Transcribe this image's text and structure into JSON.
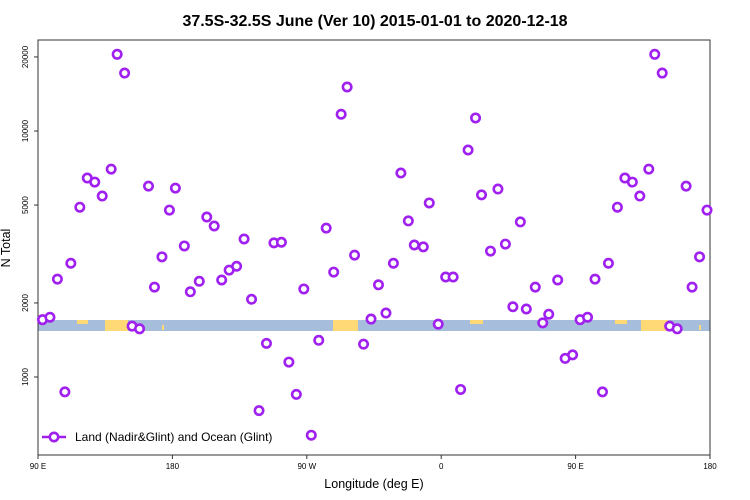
{
  "chart_data": {
    "type": "scatter",
    "title": "37.5S-32.5S June (Ver 10)   2015-01-01 to 2020-12-18",
    "xlabel": "Longitude (deg E)",
    "ylabel": "N Total",
    "y_scale": "log",
    "ylim": [
      450,
      24000
    ],
    "xlim": [
      90,
      540
    ],
    "x_unit_note": "continuous degrees east, 90E through 180 and around to 180 again",
    "x_ticks": [
      {
        "value": 90,
        "label": "90 E"
      },
      {
        "value": 180,
        "label": "180"
      },
      {
        "value": 270,
        "label": "90 W"
      },
      {
        "value": 360,
        "label": "0"
      },
      {
        "value": 450,
        "label": "90 E"
      },
      {
        "value": 540,
        "label": "180"
      }
    ],
    "y_ticks": [
      {
        "value": 1000,
        "label": "1000"
      },
      {
        "value": 2000,
        "label": "2000"
      },
      {
        "value": 5000,
        "label": "5000"
      },
      {
        "value": 10000,
        "label": "10000"
      },
      {
        "value": 20000,
        "label": "20000"
      }
    ],
    "legend": {
      "position": "bottom-left",
      "entries": [
        {
          "label": "Land (Nadir&Glint) and Ocean (Glint)",
          "color": "#A020F0",
          "marker": "open-circle"
        }
      ]
    },
    "band_colors": {
      "ocean": "#A6BDDB",
      "land": "#FED976"
    },
    "series": [
      {
        "name": "Land (Nadir&Glint) and Ocean (Glint)",
        "color": "#A020F0",
        "points": [
          [
            93,
            1710
          ],
          [
            98,
            1750
          ],
          [
            103,
            2500
          ],
          [
            108,
            870
          ],
          [
            112,
            2900
          ],
          [
            118,
            4900
          ],
          [
            123,
            6440
          ],
          [
            128,
            6200
          ],
          [
            133,
            5440
          ],
          [
            139,
            7000
          ],
          [
            143,
            20500
          ],
          [
            148,
            17200
          ],
          [
            153,
            1610
          ],
          [
            158,
            1570
          ],
          [
            164,
            5970
          ],
          [
            168,
            2320
          ],
          [
            173,
            3080
          ],
          [
            178,
            4770
          ],
          [
            182,
            5860
          ],
          [
            188,
            3410
          ],
          [
            192,
            2220
          ],
          [
            198,
            2450
          ],
          [
            203,
            4470
          ],
          [
            208,
            4110
          ],
          [
            213,
            2480
          ],
          [
            218,
            2720
          ],
          [
            223,
            2820
          ],
          [
            228,
            3640
          ],
          [
            233,
            2070
          ],
          [
            238,
            730
          ],
          [
            243,
            1370
          ],
          [
            248,
            3510
          ],
          [
            253,
            3530
          ],
          [
            258,
            1150
          ],
          [
            263,
            850
          ],
          [
            268,
            2280
          ],
          [
            273,
            580
          ],
          [
            278,
            1410
          ],
          [
            283,
            4030
          ],
          [
            288,
            2670
          ],
          [
            293,
            11700
          ],
          [
            297,
            15100
          ],
          [
            302,
            3130
          ],
          [
            308,
            1360
          ],
          [
            313,
            1720
          ],
          [
            318,
            2370
          ],
          [
            323,
            1820
          ],
          [
            328,
            2900
          ],
          [
            333,
            6750
          ],
          [
            338,
            4310
          ],
          [
            342,
            3440
          ],
          [
            348,
            3380
          ],
          [
            352,
            5100
          ],
          [
            358,
            1640
          ],
          [
            363,
            2550
          ],
          [
            368,
            2550
          ],
          [
            373,
            890
          ],
          [
            378,
            8370
          ],
          [
            383,
            11300
          ],
          [
            387,
            5500
          ],
          [
            393,
            3250
          ],
          [
            398,
            5810
          ],
          [
            403,
            3470
          ],
          [
            408,
            1930
          ],
          [
            413,
            4270
          ],
          [
            417,
            1890
          ],
          [
            423,
            2320
          ],
          [
            428,
            1660
          ],
          [
            432,
            1800
          ],
          [
            438,
            2480
          ],
          [
            443,
            1190
          ],
          [
            448,
            1230
          ],
          [
            453,
            1710
          ],
          [
            458,
            1750
          ],
          [
            463,
            2500
          ],
          [
            468,
            870
          ],
          [
            472,
            2900
          ],
          [
            478,
            4900
          ],
          [
            483,
            6440
          ],
          [
            488,
            6200
          ],
          [
            493,
            5440
          ],
          [
            499,
            7000
          ],
          [
            503,
            20500
          ],
          [
            508,
            17200
          ],
          [
            513,
            1610
          ],
          [
            518,
            1570
          ],
          [
            524,
            5970
          ],
          [
            528,
            2320
          ],
          [
            533,
            3080
          ],
          [
            538,
            4770
          ]
        ]
      }
    ]
  }
}
